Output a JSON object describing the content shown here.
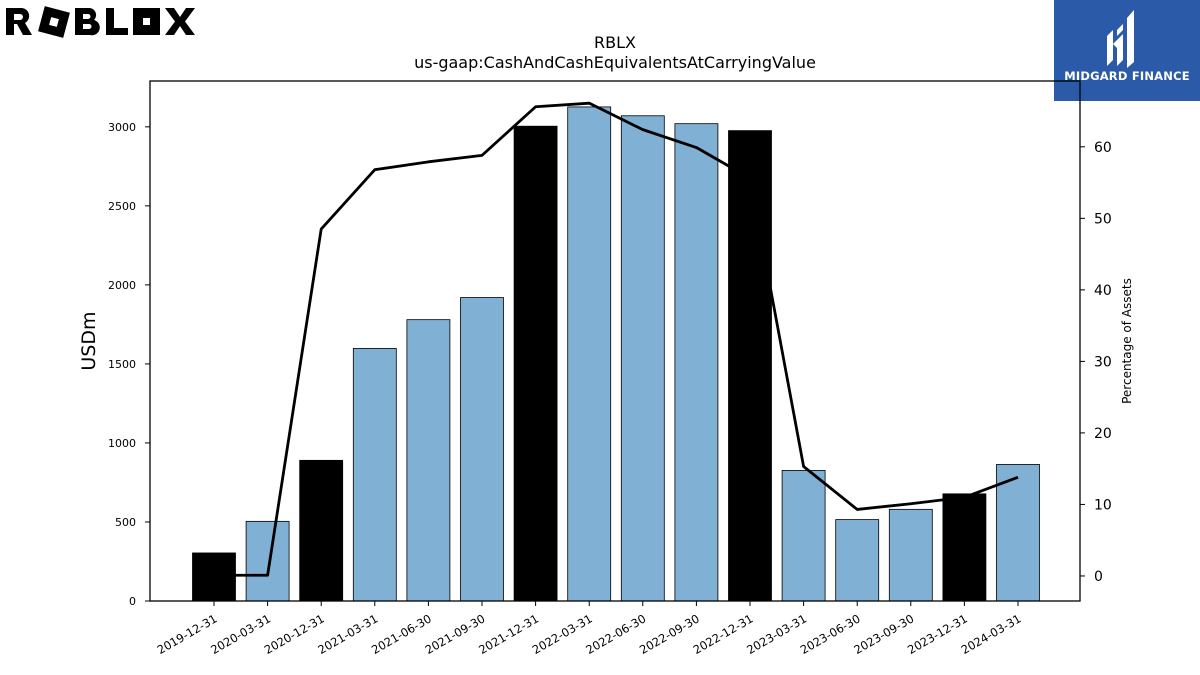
{
  "logos": {
    "left_brand": "ROBLOX",
    "right_brand": "MIDGARD FINANCE"
  },
  "colors": {
    "bar_fy": "#000000",
    "bar_quarter": "#80b0d4",
    "line": "#000000",
    "logo_bg": "#2a5aa8"
  },
  "chart_data": {
    "type": "bar",
    "title": "RBLX",
    "subtitle": "us-gaap:CashAndCashEquivalentsAtCarryingValue",
    "ylabel": "USDm",
    "y2label": "Percentage of Assets",
    "ylim": [
      0,
      3290
    ],
    "y2lim": [
      -3.5,
      69.2
    ],
    "yticks": [
      0,
      500,
      1000,
      1500,
      2000,
      2500,
      3000
    ],
    "y2ticks": [
      0,
      10,
      20,
      30,
      40,
      50,
      60
    ],
    "categories": [
      "2019-12-31",
      "2020-03-31",
      "2020-12-31",
      "2021-03-31",
      "2021-06-30",
      "2021-09-30",
      "2021-12-31",
      "2022-03-31",
      "2022-06-30",
      "2022-09-30",
      "2022-12-31",
      "2023-03-31",
      "2023-06-30",
      "2023-09-30",
      "2023-12-31",
      "2024-03-31"
    ],
    "series": [
      {
        "type": "bar",
        "values": [
          304,
          504,
          890,
          1598,
          1780,
          1920,
          3004,
          3126,
          3070,
          3020,
          2976,
          826,
          515,
          580,
          678,
          864
        ],
        "fiscal_year_end": [
          true,
          false,
          true,
          false,
          false,
          false,
          true,
          false,
          false,
          false,
          true,
          false,
          false,
          false,
          true,
          false
        ]
      },
      {
        "type": "line",
        "axis": "right",
        "values": [
          0.1,
          0.1,
          48.5,
          56.8,
          57.9,
          58.8,
          65.6,
          66.1,
          62.4,
          59.9,
          55.6,
          15.3,
          9.3,
          10.1,
          11.0,
          13.8
        ]
      }
    ],
    "grid": false,
    "legend": "none"
  }
}
